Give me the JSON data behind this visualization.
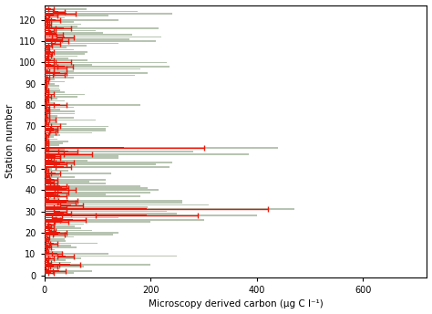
{
  "ylabel": "Station number",
  "xlabel": "Microscopy derived carbon (μg C l⁻¹)",
  "bar_color_grey": "#b8c4b2",
  "bar_color_red": "#e8190a",
  "xlim": [
    0,
    720
  ],
  "ylim": [
    -1,
    127
  ],
  "xticks": [
    0,
    200,
    400,
    600
  ],
  "yticks": [
    0,
    10,
    20,
    30,
    40,
    50,
    60,
    70,
    80,
    90,
    100,
    110,
    120
  ],
  "figsize": [
    4.74,
    3.44
  ],
  "dpi": 100,
  "stations": [
    1,
    2,
    3,
    4,
    5,
    6,
    7,
    8,
    9,
    10,
    11,
    12,
    13,
    14,
    15,
    16,
    17,
    18,
    19,
    20,
    21,
    22,
    23,
    24,
    25,
    26,
    27,
    28,
    29,
    30,
    31,
    32,
    33,
    34,
    35,
    36,
    37,
    38,
    39,
    40,
    41,
    42,
    43,
    44,
    45,
    46,
    47,
    48,
    49,
    50,
    51,
    52,
    53,
    54,
    55,
    56,
    57,
    58,
    59,
    60,
    61,
    62,
    63,
    64,
    65,
    66,
    67,
    68,
    69,
    70,
    71,
    72,
    73,
    74,
    75,
    76,
    77,
    78,
    79,
    80,
    81,
    82,
    83,
    84,
    85,
    86,
    87,
    88,
    89,
    90,
    91,
    92,
    93,
    94,
    95,
    96,
    97,
    98,
    99,
    100,
    101,
    102,
    103,
    104,
    105,
    106,
    107,
    108,
    109,
    110,
    111,
    112,
    113,
    114,
    115,
    116,
    117,
    118,
    119,
    120,
    121,
    122,
    123,
    124,
    125
  ],
  "grey_values": [
    55,
    90,
    30,
    75,
    200,
    50,
    40,
    70,
    250,
    120,
    35,
    20,
    60,
    50,
    100,
    40,
    38,
    55,
    130,
    140,
    90,
    70,
    58,
    75,
    200,
    300,
    140,
    400,
    250,
    230,
    470,
    195,
    310,
    260,
    260,
    28,
    180,
    115,
    200,
    215,
    195,
    180,
    115,
    85,
    115,
    58,
    28,
    125,
    45,
    14,
    235,
    210,
    240,
    82,
    140,
    140,
    385,
    280,
    38,
    440,
    28,
    35,
    45,
    24,
    17,
    30,
    90,
    115,
    115,
    120,
    42,
    24,
    97,
    55,
    24,
    58,
    58,
    30,
    55,
    180,
    20,
    38,
    24,
    62,
    76,
    38,
    30,
    28,
    28,
    20,
    38,
    20,
    55,
    170,
    195,
    55,
    180,
    235,
    90,
    230,
    82,
    45,
    62,
    76,
    82,
    55,
    42,
    80,
    140,
    210,
    160,
    220,
    165,
    110,
    97,
    215,
    62,
    70,
    55,
    140,
    38,
    120,
    240,
    175,
    80
  ],
  "red_values": [
    12,
    28,
    5,
    18,
    48,
    9,
    6,
    12,
    40,
    24,
    6,
    3,
    9,
    7,
    18,
    5,
    6,
    7,
    27,
    30,
    15,
    12,
    9,
    12,
    33,
    54,
    24,
    192,
    36,
    30,
    192,
    30,
    51,
    42,
    45,
    5,
    30,
    18,
    33,
    42,
    33,
    30,
    18,
    12,
    18,
    7,
    5,
    21,
    6,
    3,
    36,
    30,
    39,
    12,
    21,
    21,
    63,
    45,
    6,
    150,
    5,
    5,
    6,
    3,
    3,
    5,
    15,
    18,
    18,
    21,
    6,
    3,
    15,
    7,
    3,
    7,
    7,
    5,
    7,
    30,
    3,
    6,
    3,
    9,
    12,
    5,
    5,
    3,
    3,
    3,
    5,
    3,
    7,
    27,
    30,
    7,
    30,
    39,
    12,
    36,
    12,
    6,
    9,
    11,
    12,
    7,
    6,
    11,
    21,
    33,
    24,
    39,
    25,
    15,
    13,
    36,
    7,
    9,
    7,
    21,
    5,
    17,
    42,
    27,
    12
  ],
  "red_xerr": [
    5,
    12,
    2,
    7,
    20,
    3,
    2,
    5,
    15,
    9,
    2,
    1,
    3,
    3,
    7,
    2,
    2,
    3,
    11,
    12,
    6,
    5,
    3,
    5,
    13,
    24,
    9,
    96,
    15,
    12,
    228,
    12,
    21,
    17,
    18,
    2,
    12,
    7,
    13,
    17,
    13,
    12,
    7,
    5,
    7,
    3,
    2,
    8,
    2,
    1,
    15,
    12,
    17,
    5,
    8,
    8,
    27,
    18,
    2,
    150,
    2,
    2,
    2,
    1,
    1,
    2,
    6,
    7,
    7,
    8,
    2,
    1,
    6,
    3,
    1,
    3,
    3,
    2,
    3,
    12,
    1,
    2,
    1,
    3,
    5,
    2,
    2,
    1,
    1,
    1,
    2,
    1,
    3,
    11,
    12,
    3,
    12,
    15,
    5,
    15,
    5,
    2,
    3,
    4,
    5,
    3,
    2,
    4,
    8,
    13,
    10,
    16,
    10,
    6,
    5,
    15,
    3,
    3,
    3,
    8,
    2,
    7,
    17,
    11,
    5
  ]
}
